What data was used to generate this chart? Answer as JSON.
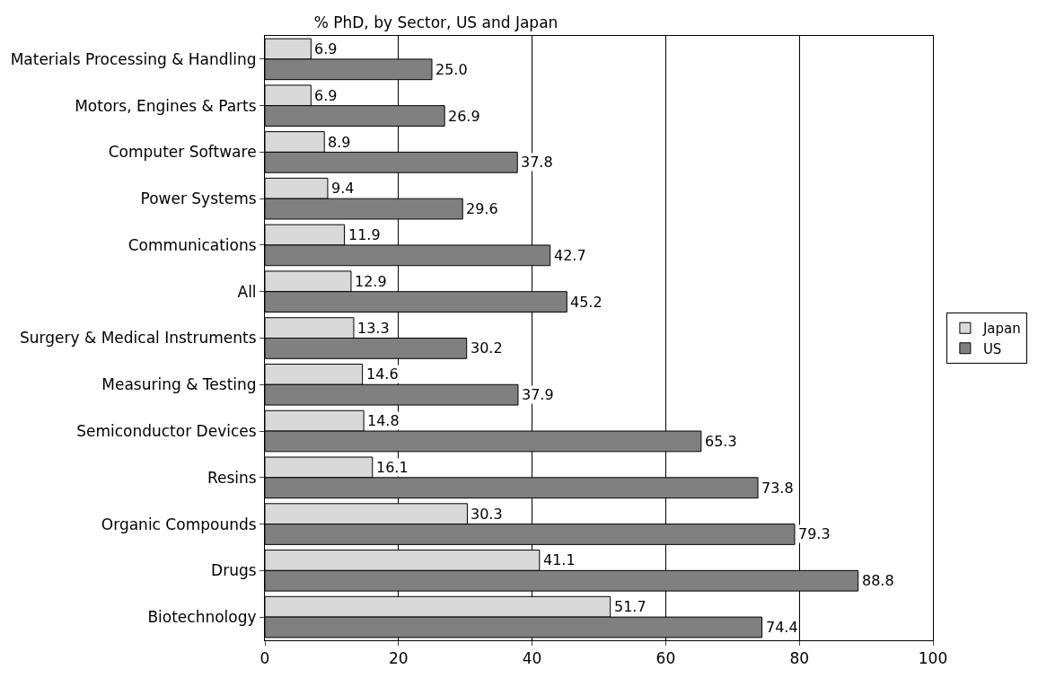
{
  "chart_data": {
    "type": "bar",
    "orientation": "horizontal",
    "title": "% PhD, by Sector, US and Japan",
    "categories": [
      "Materials Processing & Handling",
      "Motors, Engines & Parts",
      "Computer Software",
      "Power Systems",
      "Communications",
      "All",
      "Surgery & Medical Instruments",
      "Measuring & Testing",
      "Semiconductor Devices",
      "Resins",
      "Organic Compounds",
      "Drugs",
      "Biotechnology"
    ],
    "series": [
      {
        "name": "Japan",
        "color": "#d9d9d9",
        "values": [
          6.9,
          6.9,
          8.9,
          9.4,
          11.9,
          12.9,
          13.3,
          14.6,
          14.8,
          16.1,
          30.3,
          41.1,
          51.7
        ],
        "value_labels": [
          "6.9",
          "6.9",
          "8.9",
          "9.4",
          "11.9",
          "12.9",
          "13.3",
          "14.6",
          "14.8",
          "16.1",
          "30.3",
          "41.1",
          "51.7"
        ]
      },
      {
        "name": "US",
        "color": "#808080",
        "values": [
          25.0,
          26.9,
          37.8,
          29.6,
          42.7,
          45.2,
          30.2,
          37.9,
          65.3,
          73.8,
          79.3,
          88.8,
          74.4
        ],
        "value_labels": [
          "25.0",
          "26.9",
          "37.8",
          "29.6",
          "42.7",
          "45.2",
          "30.2",
          "37.9",
          "65.3",
          "73.8",
          "79.3",
          "88.8",
          "74.4"
        ]
      }
    ],
    "xlim": [
      0,
      100
    ],
    "xticks": [
      0,
      20,
      40,
      60,
      80,
      100
    ],
    "grid": "x",
    "legend": "right"
  }
}
